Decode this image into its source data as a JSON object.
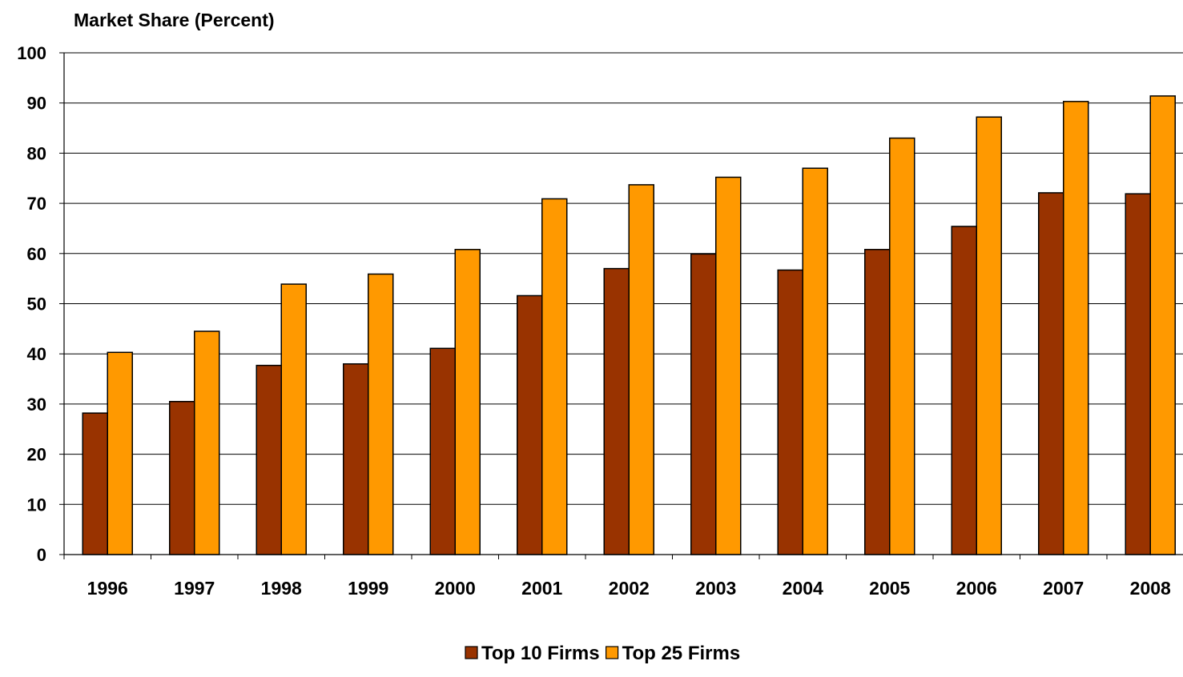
{
  "chart_data": {
    "type": "bar",
    "title": "Market Share (Percent)",
    "xlabel": "",
    "ylabel": "",
    "ylim": [
      0,
      100
    ],
    "yticks": [
      "0",
      "10",
      "20",
      "30",
      "40",
      "50",
      "60",
      "70",
      "80",
      "90",
      "100"
    ],
    "categories": [
      "1996",
      "1997",
      "1998",
      "1999",
      "2000",
      "2001",
      "2002",
      "2003",
      "2004",
      "2005",
      "2006",
      "2007",
      "2008"
    ],
    "series": [
      {
        "name": "Top 10 Firms",
        "color": "#993300",
        "values": [
          28.2,
          30.5,
          37.7,
          38.0,
          41.1,
          51.6,
          57.0,
          59.9,
          56.7,
          60.8,
          65.4,
          72.1,
          71.9
        ]
      },
      {
        "name": "Top 25 Firms",
        "color": "#FF9900",
        "values": [
          40.3,
          44.5,
          53.9,
          55.9,
          60.8,
          70.9,
          73.7,
          75.2,
          77.0,
          83.0,
          87.2,
          90.3,
          91.4
        ]
      }
    ],
    "grid": true,
    "legend": "bottom-center"
  }
}
